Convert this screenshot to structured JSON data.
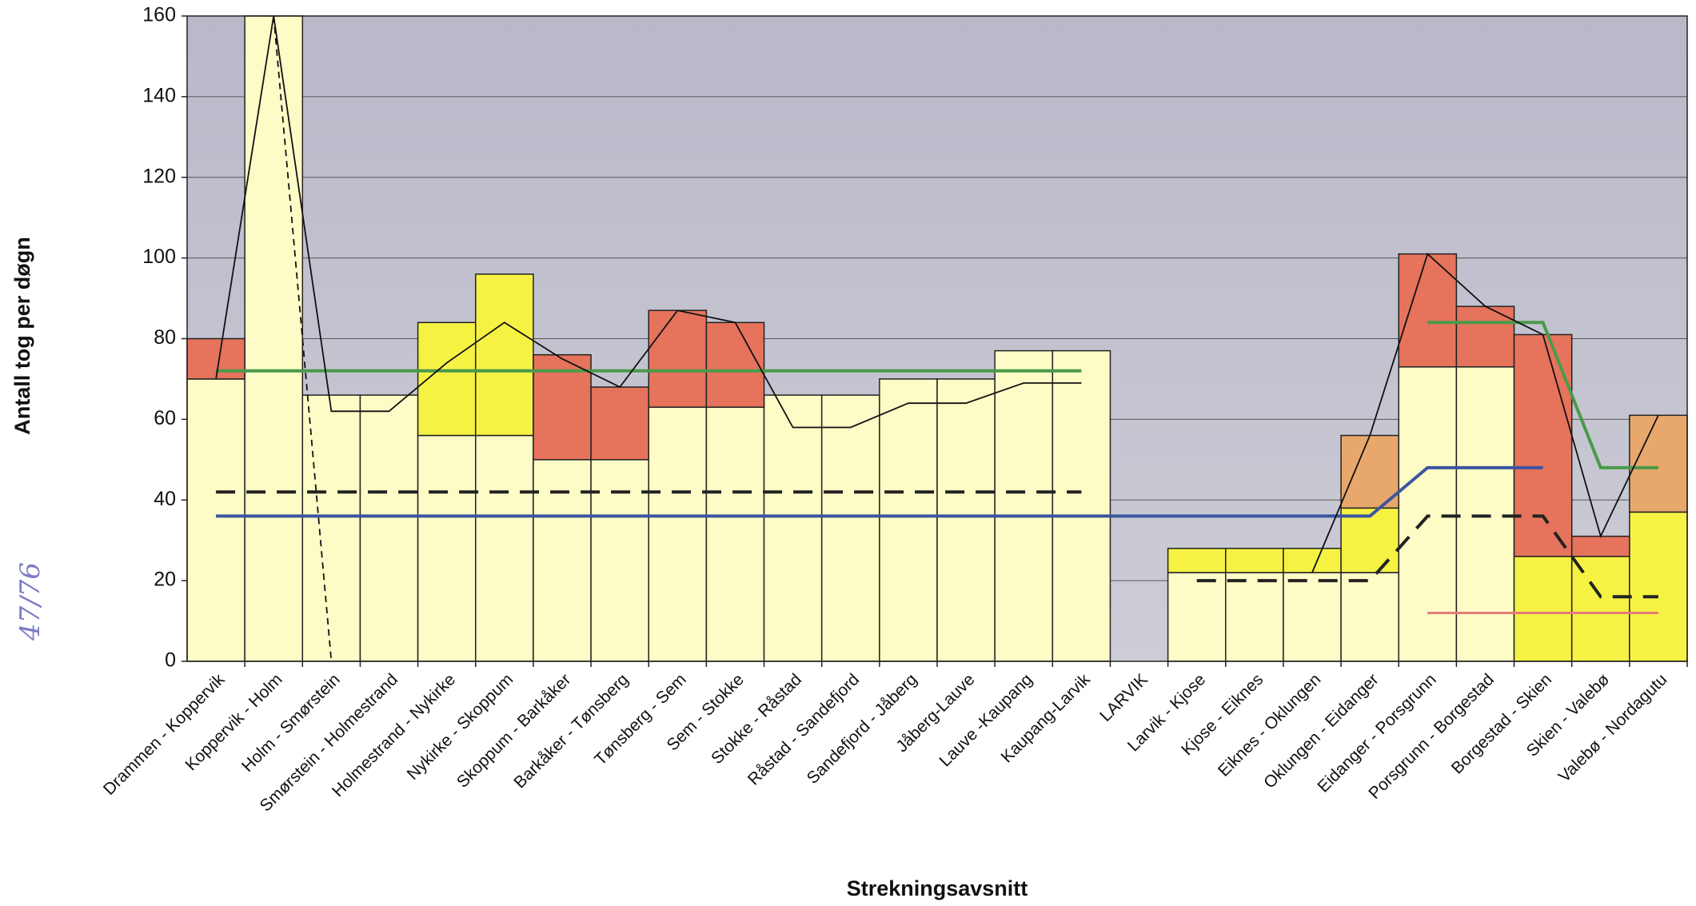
{
  "chart_data": {
    "type": "bar",
    "y_label": "Antall tog per døgn",
    "x_label": "Strekningsavsnitt",
    "annotation": "47/76",
    "categories": [
      "Drammen - Koppervik",
      "Koppervik - Holm",
      "Holm - Smørstein",
      "Smørstein - Holmestrand",
      "Holmestrand - Nykirke",
      "Nykirke - Skoppum",
      "Skoppum - Barkåker",
      "Barkåker - Tønsberg",
      "Tønsberg - Sem",
      "Sem - Stokke",
      "Stokke - Råstad",
      "Råstad - Sandefjord",
      "Sandefjord - Jåberg",
      "Jåberg-Lauve",
      "Lauve -Kaupang",
      "Kaupang-Larvik",
      "LARVIK",
      "Larvik - Kjose",
      "Kjose - Eiknes",
      "Eiknes - Oklungen",
      "Oklungen - Eidanger",
      "Eidanger - Porsgrunn",
      "Porsgrunn - Borgestad",
      "Borgestad - Skien",
      "Skien - Valebø",
      "Valebø - Nordagutu"
    ],
    "bar_series": [
      {
        "color": "#fdfbc6",
        "values": [
          70,
          160,
          66,
          66,
          56,
          56,
          50,
          50,
          63,
          63,
          66,
          66,
          70,
          70,
          77,
          77,
          null,
          22,
          22,
          22,
          22,
          73,
          73,
          null,
          null,
          null
        ]
      },
      {
        "color": "#f6f244",
        "values": [
          null,
          null,
          null,
          null,
          28,
          40,
          null,
          null,
          null,
          null,
          null,
          null,
          null,
          null,
          null,
          null,
          null,
          6,
          6,
          6,
          16,
          null,
          null,
          26,
          26,
          37
        ]
      },
      {
        "color": "#e6735c",
        "values": [
          10,
          null,
          null,
          null,
          null,
          null,
          26,
          18,
          24,
          21,
          null,
          null,
          null,
          null,
          null,
          null,
          null,
          null,
          null,
          null,
          null,
          28,
          15,
          55,
          5,
          null
        ]
      },
      {
        "color": "#e8a86c",
        "values": [
          null,
          null,
          null,
          null,
          null,
          null,
          null,
          null,
          null,
          null,
          null,
          null,
          null,
          null,
          null,
          null,
          null,
          null,
          null,
          null,
          18,
          null,
          null,
          null,
          null,
          24
        ]
      }
    ],
    "line_series": [
      {
        "color": "#4a9a4a",
        "width": 4,
        "dash": "none",
        "values": [
          72,
          72,
          72,
          72,
          72,
          72,
          72,
          72,
          72,
          72,
          72,
          72,
          72,
          72,
          72,
          72,
          null,
          null,
          null,
          null,
          null,
          84,
          84,
          84,
          48,
          48
        ]
      },
      {
        "color": "#3c55a0",
        "width": 4,
        "dash": "none",
        "values": [
          36,
          36,
          36,
          36,
          36,
          36,
          36,
          36,
          36,
          36,
          36,
          36,
          36,
          36,
          36,
          36,
          36,
          36,
          36,
          36,
          36,
          48,
          48,
          48,
          null,
          null
        ]
      },
      {
        "color": "#e87a7a",
        "width": 3,
        "dash": "none",
        "values": [
          null,
          null,
          null,
          null,
          null,
          null,
          null,
          null,
          null,
          null,
          null,
          null,
          null,
          null,
          null,
          null,
          null,
          null,
          null,
          null,
          null,
          12,
          12,
          12,
          12,
          12
        ]
      },
      {
        "color": "#222222",
        "width": 4,
        "dash": "24,14",
        "values": [
          42,
          42,
          42,
          42,
          42,
          42,
          42,
          42,
          42,
          42,
          42,
          42,
          42,
          42,
          42,
          42,
          null,
          20,
          20,
          20,
          20,
          36,
          36,
          36,
          16,
          16
        ]
      },
      {
        "color": "#111111",
        "width": 1.8,
        "dash": "none",
        "values": [
          70,
          160,
          62,
          62,
          74,
          84,
          75,
          68,
          87,
          84,
          58,
          58,
          64,
          64,
          69,
          69,
          null,
          null,
          null,
          22,
          56,
          101,
          88,
          81,
          31,
          61
        ]
      },
      {
        "color": "#111111",
        "width": 1.8,
        "dash": "8,6",
        "values": [
          null,
          160,
          0,
          null,
          null,
          null,
          null,
          null,
          null,
          null,
          null,
          null,
          null,
          null,
          null,
          null,
          null,
          null,
          null,
          null,
          null,
          null,
          null,
          null,
          null,
          null
        ]
      }
    ],
    "ylim": [
      0,
      160
    ],
    "yticks": [
      0,
      20,
      40,
      60,
      80,
      100,
      120,
      140,
      160
    ],
    "grid": true
  }
}
